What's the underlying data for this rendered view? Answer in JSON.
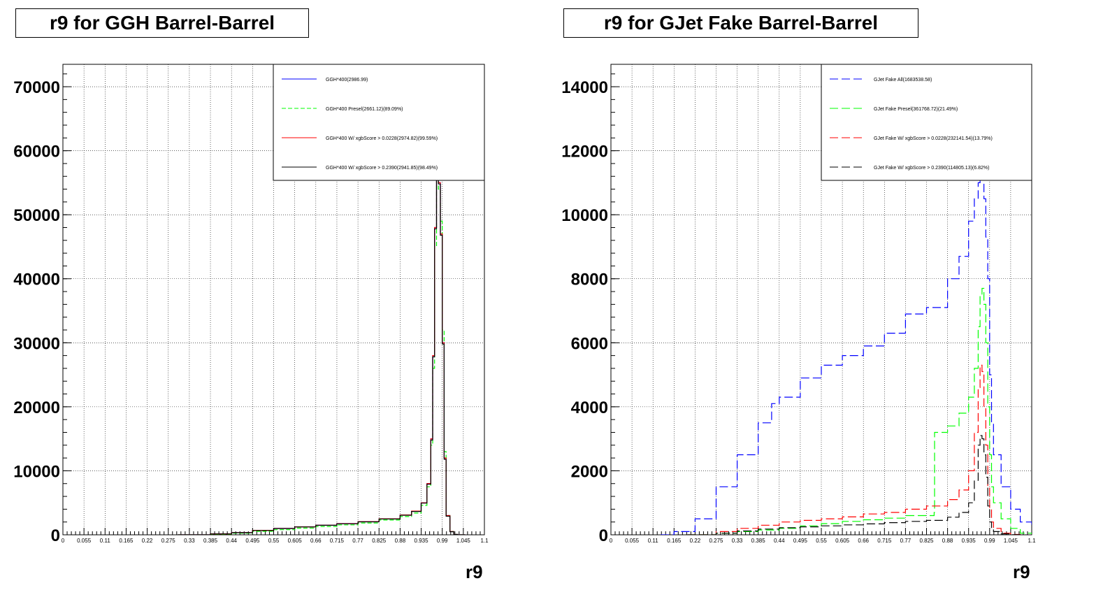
{
  "chart_data": [
    {
      "type": "line",
      "title": "r9 for GGH Barrel-Barrel",
      "xlabel": "r9",
      "ylabel": "",
      "xlim": [
        0,
        1.1
      ],
      "ylim": [
        0,
        73500
      ],
      "grid": true,
      "legend_position": "top-right",
      "xticks": [
        "0",
        "0.055",
        "0.11",
        "0.165",
        "0.22",
        "0.275",
        "0.33",
        "0.385",
        "0.44",
        "0.495",
        "0.55",
        "0.605",
        "0.66",
        "0.715",
        "0.77",
        "0.825",
        "0.88",
        "0.935",
        "0.99",
        "1.045",
        "1.1"
      ],
      "yticks": [
        {
          "v": 0,
          "label": "0"
        },
        {
          "v": 10000,
          "label": "10000"
        },
        {
          "v": 20000,
          "label": "20000"
        },
        {
          "v": 30000,
          "label": "30000"
        },
        {
          "v": 40000,
          "label": "40000"
        },
        {
          "v": 50000,
          "label": "50000"
        },
        {
          "v": 60000,
          "label": "60000"
        },
        {
          "v": 70000,
          "label": "70000"
        }
      ],
      "series": [
        {
          "name": "GGH*400(2986.99)",
          "color": "#0000ff",
          "dash": "",
          "x": [
            0.3,
            0.385,
            0.44,
            0.495,
            0.55,
            0.605,
            0.66,
            0.715,
            0.77,
            0.825,
            0.88,
            0.91,
            0.935,
            0.95,
            0.96,
            0.965,
            0.97,
            0.975,
            0.98,
            0.985,
            0.99,
            0.995,
            1.0,
            1.01,
            1.02,
            1.03,
            1.05
          ],
          "y": [
            0,
            150,
            350,
            700,
            1000,
            1250,
            1500,
            1750,
            2050,
            2500,
            3100,
            3700,
            5000,
            8000,
            15000,
            28000,
            48000,
            62000,
            55000,
            47000,
            30000,
            12000,
            3000,
            500,
            50,
            0,
            0
          ]
        },
        {
          "name": "GGH*400 Presel(2661.12)(89.09%)",
          "color": "#00ff00",
          "dash": "6,3",
          "x": [
            0.3,
            0.385,
            0.44,
            0.495,
            0.55,
            0.605,
            0.66,
            0.715,
            0.77,
            0.825,
            0.88,
            0.91,
            0.935,
            0.95,
            0.96,
            0.965,
            0.97,
            0.975,
            0.98,
            0.985,
            0.99,
            0.995,
            1.0,
            1.01,
            1.02,
            1.03,
            1.05
          ],
          "y": [
            0,
            100,
            250,
            550,
            800,
            1050,
            1300,
            1550,
            1850,
            2300,
            2850,
            3400,
            4600,
            7500,
            14000,
            26000,
            45000,
            60000,
            54000,
            49000,
            32000,
            13000,
            3000,
            500,
            50,
            0,
            0
          ]
        },
        {
          "name": "GGH*400 W/ xgbScore > 0.0228(2974.82)(99.59%)",
          "color": "#ff0000",
          "dash": "",
          "x": [
            0.3,
            0.385,
            0.44,
            0.495,
            0.55,
            0.605,
            0.66,
            0.715,
            0.77,
            0.825,
            0.88,
            0.91,
            0.935,
            0.95,
            0.96,
            0.965,
            0.97,
            0.975,
            0.98,
            0.985,
            0.99,
            0.995,
            1.0,
            1.01,
            1.02,
            1.03,
            1.05
          ],
          "y": [
            0,
            150,
            350,
            700,
            1000,
            1250,
            1500,
            1750,
            2050,
            2500,
            3100,
            3700,
            5000,
            8000,
            15000,
            28000,
            48000,
            62000,
            55000,
            47000,
            30000,
            12000,
            3000,
            500,
            50,
            0,
            0
          ]
        },
        {
          "name": "GGH*400 W/ xgbScore > 0.2390(2941.85)(98.49%)",
          "color": "#000000",
          "dash": "",
          "x": [
            0.3,
            0.385,
            0.44,
            0.495,
            0.55,
            0.605,
            0.66,
            0.715,
            0.77,
            0.825,
            0.88,
            0.91,
            0.935,
            0.95,
            0.96,
            0.965,
            0.97,
            0.975,
            0.98,
            0.985,
            0.99,
            0.995,
            1.0,
            1.01,
            1.02,
            1.03,
            1.05
          ],
          "y": [
            0,
            140,
            330,
            680,
            980,
            1230,
            1480,
            1730,
            2020,
            2470,
            3060,
            3650,
            4950,
            7900,
            14800,
            27800,
            47800,
            61800,
            54800,
            46800,
            29800,
            11800,
            2900,
            480,
            50,
            0,
            0
          ]
        }
      ]
    },
    {
      "type": "line",
      "title": "r9 for GJet Fake Barrel-Barrel",
      "xlabel": "r9",
      "ylabel": "",
      "xlim": [
        0,
        1.1
      ],
      "ylim": [
        0,
        14700
      ],
      "grid": true,
      "legend_position": "top-right",
      "xticks": [
        "0",
        "0.055",
        "0.11",
        "0.165",
        "0.22",
        "0.275",
        "0.33",
        "0.385",
        "0.44",
        "0.495",
        "0.55",
        "0.605",
        "0.66",
        "0.715",
        "0.77",
        "0.825",
        "0.88",
        "0.935",
        "0.99",
        "1.045",
        "1.1"
      ],
      "yticks": [
        {
          "v": 0,
          "label": "0"
        },
        {
          "v": 2000,
          "label": "2000"
        },
        {
          "v": 4000,
          "label": "4000"
        },
        {
          "v": 6000,
          "label": "6000"
        },
        {
          "v": 8000,
          "label": "8000"
        },
        {
          "v": 10000,
          "label": "10000"
        },
        {
          "v": 12000,
          "label": "12000"
        },
        {
          "v": 14000,
          "label": "14000"
        }
      ],
      "series": [
        {
          "name": "GJet Fake All(1683538.58)",
          "color": "#0000ff",
          "dash": "12,5",
          "x": [
            0.13,
            0.165,
            0.22,
            0.275,
            0.33,
            0.385,
            0.42,
            0.44,
            0.495,
            0.55,
            0.605,
            0.66,
            0.715,
            0.77,
            0.8,
            0.825,
            0.88,
            0.91,
            0.935,
            0.95,
            0.96,
            0.965,
            0.97,
            0.975,
            0.98,
            0.985,
            0.99,
            0.995,
            1.0,
            1.02,
            1.045,
            1.07,
            1.1
          ],
          "y": [
            0,
            100,
            500,
            1500,
            2500,
            3500,
            4100,
            4300,
            4900,
            5300,
            5600,
            5900,
            6300,
            6900,
            6900,
            7100,
            8000,
            8700,
            9800,
            10500,
            11000,
            11200,
            11200,
            10500,
            9300,
            8000,
            5000,
            3500,
            2500,
            1500,
            800,
            400,
            250
          ]
        },
        {
          "name": "GJet Fake Presel(361768.72)(21.49%)",
          "color": "#00ff00",
          "dash": "12,5",
          "x": [
            0.2,
            0.275,
            0.33,
            0.385,
            0.44,
            0.495,
            0.55,
            0.605,
            0.66,
            0.715,
            0.77,
            0.845,
            0.846,
            0.88,
            0.91,
            0.935,
            0.95,
            0.96,
            0.965,
            0.97,
            0.975,
            0.98,
            0.985,
            0.99,
            0.995,
            1.0,
            1.02,
            1.045,
            1.07,
            1.1
          ],
          "y": [
            0,
            50,
            100,
            150,
            200,
            280,
            350,
            420,
            470,
            520,
            600,
            700,
            3200,
            3400,
            3800,
            4300,
            5200,
            6500,
            7500,
            7700,
            7200,
            6000,
            4000,
            2500,
            1500,
            1000,
            500,
            200,
            50,
            20
          ]
        },
        {
          "name": "GJet Fake W/ xgbScore > 0.0228(232141.54)(13.79%)",
          "color": "#ff0000",
          "dash": "12,5",
          "x": [
            0.2,
            0.275,
            0.33,
            0.385,
            0.44,
            0.495,
            0.55,
            0.605,
            0.66,
            0.715,
            0.77,
            0.825,
            0.88,
            0.91,
            0.935,
            0.95,
            0.96,
            0.965,
            0.97,
            0.975,
            0.98,
            0.985,
            0.99,
            0.995,
            1.0,
            1.02,
            1.045,
            1.07
          ],
          "y": [
            0,
            100,
            200,
            300,
            400,
            450,
            500,
            560,
            650,
            700,
            800,
            900,
            1100,
            1400,
            2000,
            3200,
            4600,
            5300,
            5100,
            4000,
            2800,
            1500,
            800,
            400,
            200,
            50,
            10,
            0
          ]
        },
        {
          "name": "GJet Fake W/ xgbScore > 0.2390(114805.13)(6.82%)",
          "color": "#000000",
          "dash": "12,5",
          "x": [
            0.2,
            0.275,
            0.33,
            0.385,
            0.44,
            0.495,
            0.55,
            0.605,
            0.66,
            0.715,
            0.77,
            0.825,
            0.88,
            0.91,
            0.935,
            0.95,
            0.96,
            0.965,
            0.97,
            0.975,
            0.98,
            0.985,
            0.99,
            0.995,
            1.0,
            1.02,
            1.045,
            1.07
          ],
          "y": [
            0,
            50,
            120,
            180,
            220,
            250,
            280,
            310,
            340,
            380,
            420,
            450,
            550,
            700,
            1000,
            1700,
            2800,
            3100,
            3000,
            2500,
            1800,
            900,
            400,
            200,
            100,
            30,
            5,
            0
          ]
        }
      ]
    }
  ]
}
